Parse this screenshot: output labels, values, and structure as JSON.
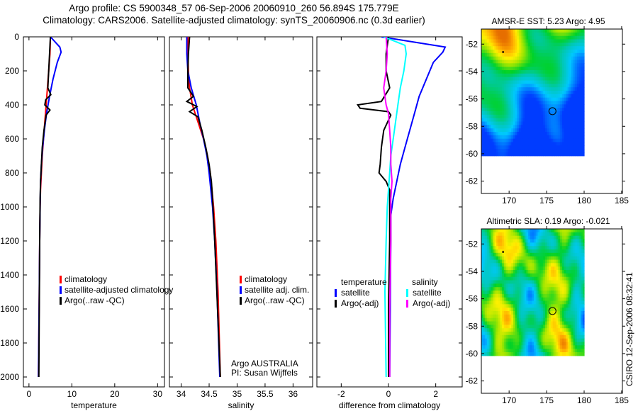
{
  "title": {
    "line1": "Argo profile: CS 5900348_57 06-Sep-2006 20060910_260 56.894S 175.779E",
    "line2": "Climatology: CARS2006. Satellite-adjusted climatology: synTS_20060906.nc (0.3d earlier)"
  },
  "stamp": "CSIRO 12-Sep-2006 08:32:41",
  "colors": {
    "climatology": "#ff0000",
    "satellite": "#0000ff",
    "argo": "#000000",
    "sal_satellite": "#00ffff",
    "sal_argo": "#ff00ff"
  },
  "chart_data": [
    {
      "type": "line",
      "id": "temperature",
      "xlabel": "temperature",
      "ylabel": "",
      "xlim": [
        -1.3,
        31.6
      ],
      "ylim": [
        2000,
        0
      ],
      "xticks": [
        0,
        10,
        20,
        30
      ],
      "yticks": [
        0,
        200,
        400,
        600,
        800,
        1000,
        1200,
        1400,
        1600,
        1800,
        2000
      ],
      "legend": [
        "climatology",
        "satellite-adjusted climatology",
        "Argo(..raw -QC)"
      ],
      "series": [
        {
          "name": "climatology",
          "color": "#ff0000",
          "depth": [
            0,
            100,
            200,
            300,
            400,
            500,
            600,
            700,
            800,
            900,
            1000,
            1200,
            1500,
            2000
          ],
          "values": [
            5.0,
            4.9,
            4.6,
            4.3,
            4.0,
            3.7,
            3.4,
            3.1,
            2.9,
            2.7,
            2.6,
            2.5,
            2.4,
            2.2
          ]
        },
        {
          "name": "satellite-adjusted climatology",
          "color": "#0000ff",
          "depth": [
            0,
            60,
            90,
            150,
            250,
            350,
            450,
            550,
            650,
            750,
            850,
            1000,
            1200,
            1500,
            2000
          ],
          "values": [
            5.0,
            7.2,
            7.5,
            6.6,
            5.6,
            4.8,
            4.1,
            3.6,
            3.2,
            2.9,
            2.7,
            2.6,
            2.5,
            2.4,
            2.2
          ]
        },
        {
          "name": "Argo(..raw -QC)",
          "color": "#000000",
          "depth": [
            0,
            100,
            200,
            300,
            340,
            370,
            400,
            430,
            460,
            550,
            650,
            750,
            850,
            950,
            1200,
            1600,
            2000
          ],
          "values": [
            5.0,
            4.8,
            4.6,
            4.4,
            5.1,
            3.9,
            3.7,
            4.9,
            4.0,
            3.5,
            3.1,
            2.9,
            2.7,
            2.6,
            2.5,
            2.4,
            2.3
          ]
        }
      ]
    },
    {
      "type": "line",
      "id": "salinity",
      "xlabel": "salinity",
      "xlim": [
        33.79,
        36.35
      ],
      "ylim": [
        2000,
        0
      ],
      "xticks": [
        34,
        34.5,
        35,
        35.5,
        36
      ],
      "legend": [
        "climatology",
        "satellite adj. clim.",
        "Argo(..raw -QC)"
      ],
      "annotation": [
        "Argo AUSTRALIA",
        "PI: Susan Wijffels"
      ],
      "series": [
        {
          "name": "climatology",
          "color": "#ff0000",
          "depth": [
            0,
            100,
            200,
            300,
            400,
            500,
            600,
            700,
            800,
            900,
            1000,
            1200,
            1500,
            2000
          ],
          "values": [
            34.12,
            34.12,
            34.13,
            34.15,
            34.2,
            34.3,
            34.4,
            34.47,
            34.52,
            34.55,
            34.58,
            34.62,
            34.66,
            34.7
          ]
        },
        {
          "name": "satellite adj. clim.",
          "color": "#0000ff",
          "depth": [
            0,
            100,
            200,
            300,
            400,
            500,
            600,
            700,
            800,
            900,
            1000,
            1200,
            1500,
            2000
          ],
          "values": [
            34.1,
            34.1,
            34.12,
            34.18,
            34.27,
            34.33,
            34.4,
            34.46,
            34.5,
            34.53,
            34.56,
            34.6,
            34.64,
            34.69
          ]
        },
        {
          "name": "Argo(..raw -QC)",
          "color": "#000000",
          "depth": [
            0,
            100,
            200,
            300,
            350,
            380,
            410,
            440,
            470,
            550,
            650,
            750,
            850,
            950,
            1200,
            1600,
            2000
          ],
          "values": [
            34.15,
            34.13,
            34.12,
            34.12,
            34.22,
            34.1,
            34.28,
            34.15,
            34.3,
            34.37,
            34.44,
            34.5,
            34.54,
            34.56,
            34.6,
            34.65,
            34.7
          ]
        }
      ]
    },
    {
      "type": "line",
      "id": "difference",
      "xlabel": "difference from climatology",
      "xlim": [
        -3.03,
        3.12
      ],
      "ylim": [
        2000,
        0
      ],
      "xticks": [
        -2,
        0,
        2
      ],
      "legend": {
        "temperature": [
          "satellite",
          "Argo(-adj)"
        ],
        "salinity": [
          "satellite",
          "Argo(-adj)"
        ]
      },
      "legend_headers": [
        "temperature",
        "salinity"
      ],
      "series": [
        {
          "name": "temperature satellite",
          "color": "#0000ff",
          "depth": [
            0,
            40,
            60,
            90,
            150,
            250,
            350,
            450,
            550,
            650,
            750,
            850,
            950,
            1050,
            1200,
            1500,
            2000
          ],
          "values": [
            -0.3,
            1.5,
            2.4,
            2.3,
            1.9,
            1.6,
            1.3,
            1.1,
            0.9,
            0.7,
            0.5,
            0.35,
            0.2,
            0.1,
            0.1,
            0.08,
            0.05
          ]
        },
        {
          "name": "temperature Argo(-adj)",
          "color": "#000000",
          "depth": [
            0,
            100,
            200,
            300,
            380,
            400,
            420,
            440,
            460,
            550,
            650,
            750,
            800,
            850,
            900,
            1200,
            1600,
            2000
          ],
          "values": [
            0,
            -0.1,
            -0.1,
            0.05,
            -0.3,
            -1.3,
            -1.2,
            0.0,
            0.1,
            -0.2,
            -0.3,
            -0.35,
            -0.4,
            -0.1,
            0.05,
            0.05,
            0.0,
            0.0
          ]
        },
        {
          "name": "salinity satellite",
          "color": "#00ffff",
          "depth": [
            0,
            50,
            100,
            200,
            300,
            400,
            500,
            600,
            700,
            800,
            900,
            1000,
            1200,
            1500,
            2000
          ],
          "values": [
            -0.2,
            0.7,
            0.75,
            0.65,
            0.5,
            0.4,
            0.3,
            0.2,
            0.1,
            0.05,
            0.0,
            -0.05,
            -0.1,
            -0.15,
            -0.1
          ]
        },
        {
          "name": "salinity Argo(-adj)",
          "color": "#ff00ff",
          "depth": [
            0,
            100,
            200,
            300,
            350,
            400,
            450,
            550,
            650,
            750,
            850,
            950,
            1200,
            1600,
            2000
          ],
          "values": [
            -0.1,
            -0.05,
            -0.1,
            -0.2,
            -0.15,
            -0.1,
            0.0,
            0.05,
            0.1,
            0.1,
            0.15,
            0.1,
            0.1,
            0.05,
            0.05
          ]
        }
      ]
    },
    {
      "type": "heatmap",
      "id": "sst-map",
      "title": "AMSR-E SST: 5.23 Argo: 4.95",
      "xlim": [
        166.3,
        185.1
      ],
      "ylim": [
        -62.9,
        -50.9
      ],
      "xticks": [
        170,
        175,
        180,
        185
      ],
      "yticks": [
        -52,
        -54,
        -56,
        -58,
        -60,
        -62
      ],
      "data_extent": {
        "lon": [
          166.3,
          180
        ],
        "lat": [
          -60,
          -50.9
        ]
      },
      "argo_position": {
        "lon": 175.779,
        "lat": -56.894
      }
    },
    {
      "type": "heatmap",
      "id": "sla-map",
      "title": "Altimetric SLA: 0.19 Argo: -0.021",
      "xlim": [
        166.3,
        185.1
      ],
      "ylim": [
        -62.9,
        -50.9
      ],
      "xticks": [
        170,
        175,
        180,
        185
      ],
      "yticks": [
        -52,
        -54,
        -56,
        -58,
        -60,
        -62
      ],
      "data_extent": {
        "lon": [
          166.3,
          180
        ],
        "lat": [
          -60,
          -50.9
        ]
      },
      "argo_position": {
        "lon": 175.779,
        "lat": -56.894
      }
    }
  ]
}
